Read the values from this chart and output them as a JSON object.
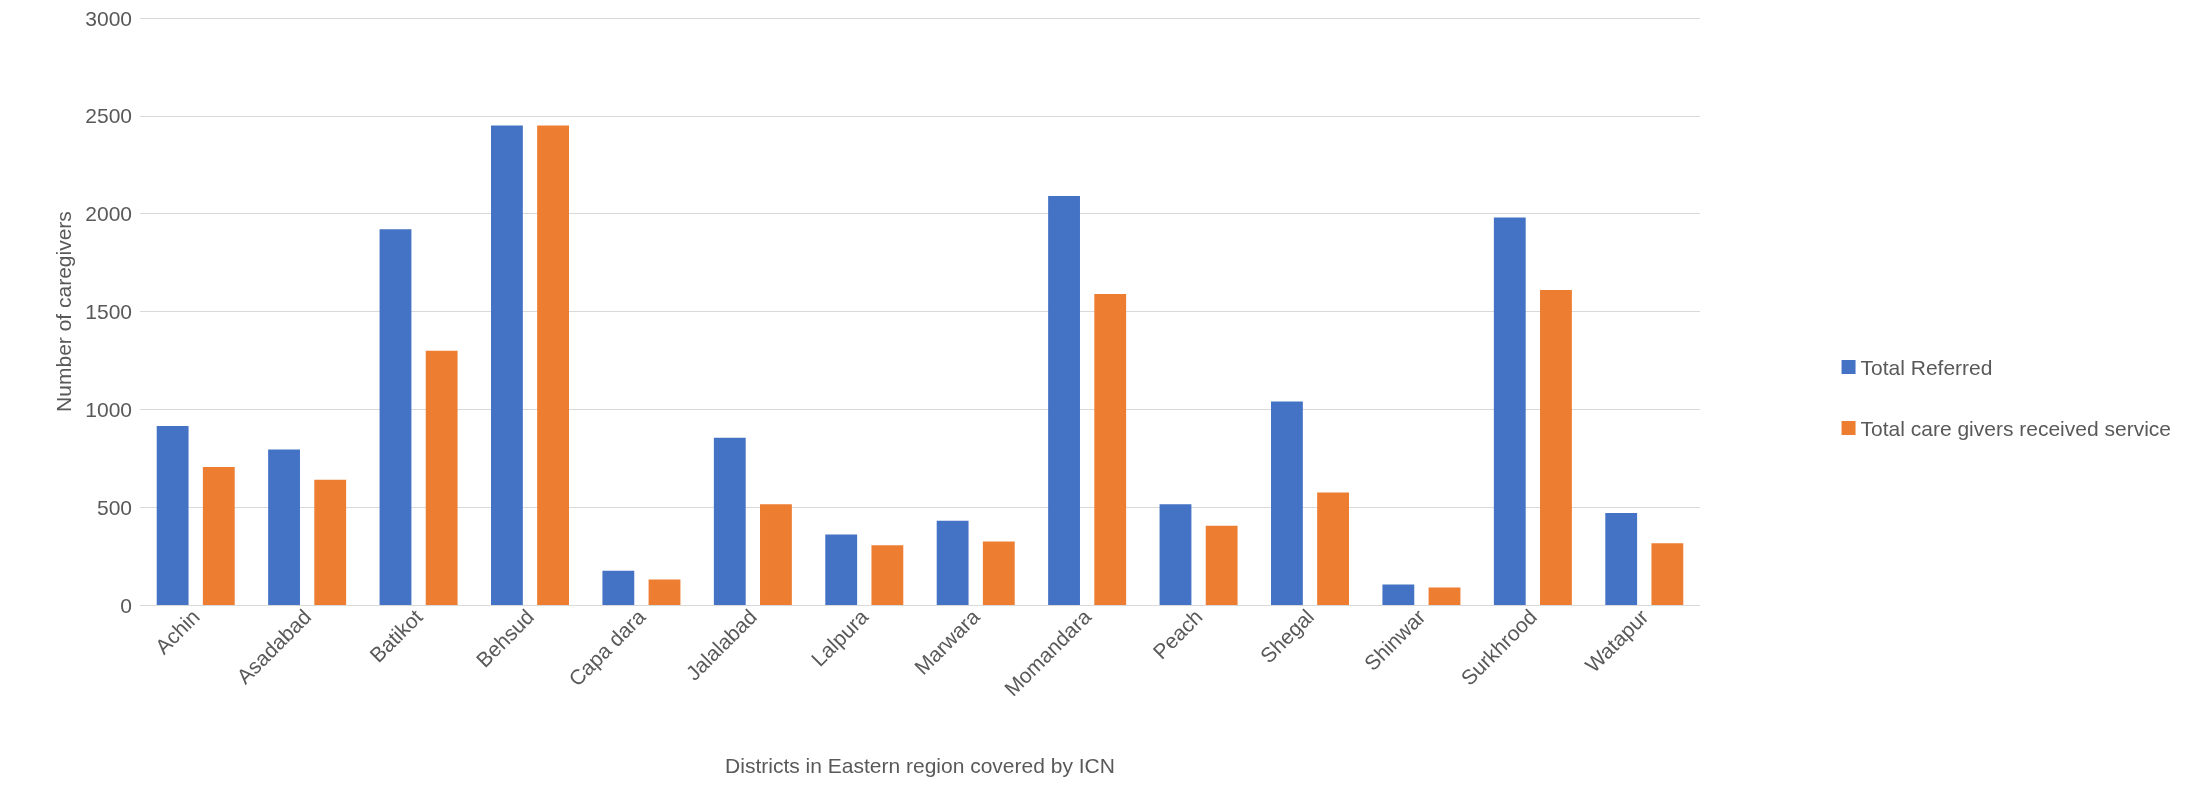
{
  "chart_data": {
    "type": "bar",
    "xlabel": "Districts in Eastern region covered by ICN",
    "ylabel": "Number of caregivers",
    "categories": [
      "Achin",
      "Asadabad",
      "Batikot",
      "Behsud",
      "Capa dara",
      "Jalalabad",
      "Lalpura",
      "Marwara",
      "Momandara",
      "Peach",
      "Shegal",
      "Shinwar",
      "Surkhrood",
      "Watapur"
    ],
    "series": [
      {
        "name": "Total Referred",
        "color": "#4472c4",
        "values": [
          915,
          795,
          1920,
          2450,
          175,
          855,
          360,
          430,
          2090,
          515,
          1040,
          105,
          1980,
          470
        ]
      },
      {
        "name": "Total care givers received service",
        "color": "#ed7d31",
        "values": [
          705,
          640,
          1300,
          2450,
          130,
          515,
          305,
          325,
          1590,
          405,
          575,
          90,
          1610,
          315
        ]
      }
    ],
    "ylim": [
      0,
      3000
    ],
    "yticks": [
      0,
      500,
      1000,
      1500,
      2000,
      2500,
      3000
    ],
    "grid": "y",
    "legend": "right"
  }
}
